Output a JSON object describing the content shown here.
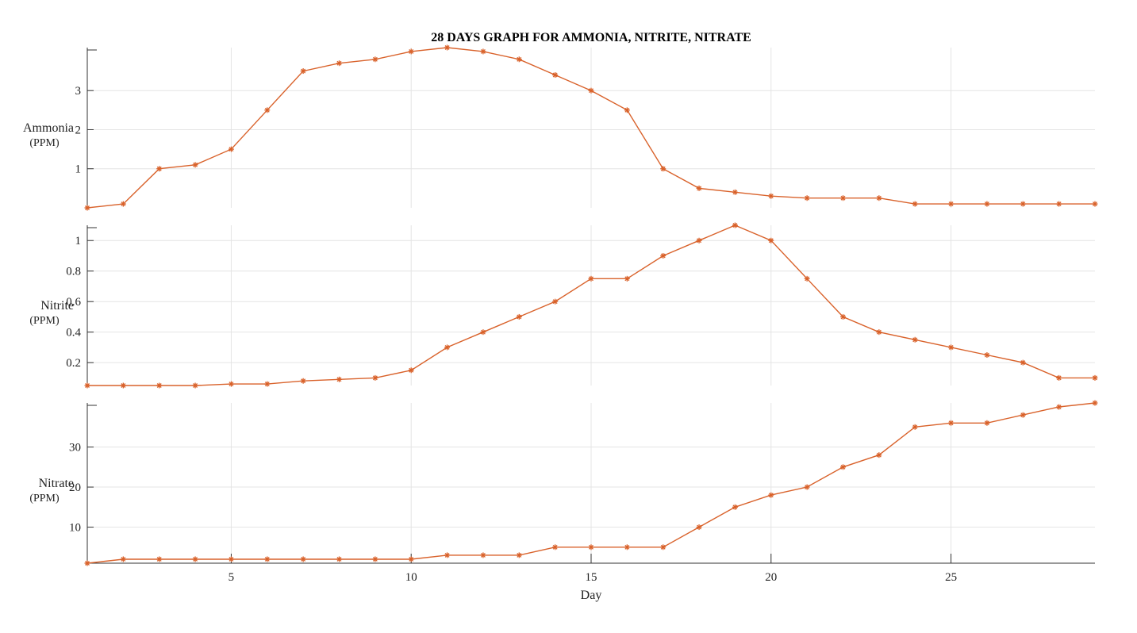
{
  "chart_data": {
    "type": "line",
    "title": "28 DAYS GRAPH FOR AMMONIA, NITRITE, NITRATE",
    "xlabel": "Day",
    "xlim": [
      1,
      29
    ],
    "x_ticks": [
      5,
      10,
      15,
      20,
      25
    ],
    "x_tick_labels": [
      "5",
      "10",
      "15",
      "20",
      "25"
    ],
    "grid": true,
    "line_color": "#d9622b",
    "marker": "asterisk",
    "x": [
      1,
      2,
      3,
      4,
      5,
      6,
      7,
      8,
      9,
      10,
      11,
      12,
      13,
      14,
      15,
      16,
      17,
      18,
      19,
      20,
      21,
      22,
      23,
      24,
      25,
      26,
      27,
      28,
      29
    ],
    "panels": [
      {
        "ylabel": "Ammonia",
        "yunit": "(PPM)",
        "ylim": [
          0,
          4.1
        ],
        "y_ticks": [
          1,
          2,
          3
        ],
        "y_tick_labels": [
          "1",
          "2",
          "3"
        ],
        "values": [
          0,
          0.1,
          1.0,
          1.1,
          1.5,
          2.5,
          3.5,
          3.7,
          3.8,
          4.0,
          4.1,
          4.0,
          3.8,
          3.4,
          3.0,
          2.5,
          1.0,
          0.5,
          0.4,
          0.3,
          0.25,
          0.25,
          0.25,
          0.1,
          0.1,
          0.1,
          0.1,
          0.1,
          0.1
        ]
      },
      {
        "ylabel": "Nitrite",
        "yunit": "(PPM)",
        "ylim": [
          0.05,
          1.1
        ],
        "y_ticks": [
          0.2,
          0.4,
          0.6,
          0.8,
          1.0
        ],
        "y_tick_labels": [
          "0.2",
          "0.4",
          "0.6",
          "0.8",
          "1"
        ],
        "values": [
          0.05,
          0.05,
          0.05,
          0.05,
          0.06,
          0.06,
          0.08,
          0.09,
          0.1,
          0.15,
          0.3,
          0.4,
          0.5,
          0.6,
          0.75,
          0.75,
          0.9,
          1.0,
          1.1,
          1.0,
          0.75,
          0.5,
          0.4,
          0.35,
          0.3,
          0.25,
          0.2,
          0.1,
          0.1
        ]
      },
      {
        "ylabel": "Nitrate",
        "yunit": "(PPM)",
        "ylim": [
          1,
          41
        ],
        "y_ticks": [
          10,
          20,
          30
        ],
        "y_tick_labels": [
          "10",
          "20",
          "30"
        ],
        "values": [
          1,
          2,
          2,
          2,
          2,
          2,
          2,
          2,
          2,
          2,
          3,
          3,
          3,
          5,
          5,
          5,
          5,
          10,
          15,
          18,
          20,
          25,
          28,
          35,
          36,
          36,
          38,
          40,
          41
        ]
      }
    ]
  }
}
